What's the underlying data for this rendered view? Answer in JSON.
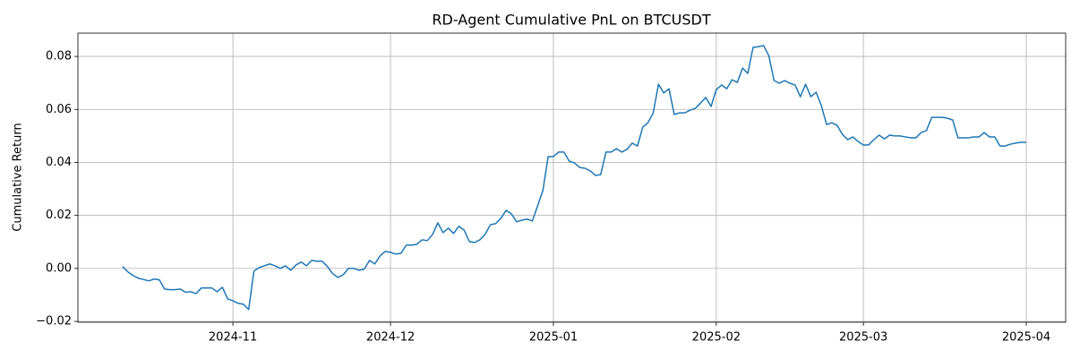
{
  "chart_data": {
    "type": "line",
    "title": "RD-Agent Cumulative PnL on BTCUSDT",
    "ylabel": "Cumulative Return",
    "color": "#1f77b4",
    "grid": true,
    "ylim": [
      -0.0203,
      0.0888
    ],
    "yticks": [
      {
        "value": -0.02,
        "label": "−0.02"
      },
      {
        "value": 0,
        "label": "0.00"
      },
      {
        "value": 0.02,
        "label": "0.02"
      },
      {
        "value": 0.04,
        "label": "0.04"
      },
      {
        "value": 0.06,
        "label": "0.06"
      },
      {
        "value": 0.08,
        "label": "0.08"
      }
    ],
    "xlim": [
      -8.5,
      179.5
    ],
    "xticks": [
      {
        "value": 21,
        "label": "2024-11"
      },
      {
        "value": 51,
        "label": "2024-12"
      },
      {
        "value": 82,
        "label": "2025-01"
      },
      {
        "value": 113,
        "label": "2025-02"
      },
      {
        "value": 141,
        "label": "2025-03"
      },
      {
        "value": 172,
        "label": "2025-04"
      }
    ],
    "values": [
      0.0007,
      -0.0013,
      -0.0027,
      -0.0037,
      -0.0042,
      -0.0047,
      -0.004,
      -0.0043,
      -0.0078,
      -0.008,
      -0.008,
      -0.0078,
      -0.009,
      -0.0088,
      -0.0095,
      -0.0074,
      -0.0074,
      -0.0074,
      -0.0088,
      -0.0071,
      -0.0115,
      -0.0122,
      -0.0132,
      -0.0135,
      -0.0155,
      -0.001,
      0.0003,
      0.001,
      0.0017,
      0.001,
      0,
      0.001,
      -0.0007,
      0.0013,
      0.0024,
      0.001,
      0.003,
      0.0027,
      0.0027,
      0.0007,
      -0.002,
      -0.0034,
      -0.0024,
      0,
      0,
      -0.0007,
      -0.0003,
      0.003,
      0.0017,
      0.0047,
      0.0064,
      0.0061,
      0.0054,
      0.0057,
      0.0088,
      0.0088,
      0.0091,
      0.0108,
      0.0105,
      0.0128,
      0.0172,
      0.0135,
      0.0152,
      0.0132,
      0.0159,
      0.0145,
      0.0101,
      0.0098,
      0.0108,
      0.0128,
      0.0165,
      0.0169,
      0.0189,
      0.0219,
      0.0206,
      0.0176,
      0.0182,
      0.0186,
      0.0179,
      0.0236,
      0.0294,
      0.0422,
      0.0422,
      0.0439,
      0.0439,
      0.0405,
      0.0398,
      0.0381,
      0.0378,
      0.0368,
      0.0351,
      0.0354,
      0.0439,
      0.0439,
      0.0452,
      0.0439,
      0.0449,
      0.0473,
      0.0462,
      0.0533,
      0.055,
      0.0587,
      0.0695,
      0.0662,
      0.0678,
      0.0581,
      0.0587,
      0.0587,
      0.0597,
      0.0604,
      0.0624,
      0.0645,
      0.0611,
      0.0675,
      0.0692,
      0.0678,
      0.0712,
      0.0702,
      0.0756,
      0.0736,
      0.0834,
      0.0837,
      0.0841,
      0.0803,
      0.0709,
      0.0699,
      0.0709,
      0.0699,
      0.0692,
      0.0648,
      0.0695,
      0.0648,
      0.0665,
      0.0614,
      0.0543,
      0.055,
      0.054,
      0.0506,
      0.0486,
      0.0496,
      0.0479,
      0.0466,
      0.0466,
      0.0486,
      0.0503,
      0.0489,
      0.0503,
      0.05,
      0.05,
      0.0496,
      0.0493,
      0.0493,
      0.0513,
      0.052,
      0.057,
      0.057,
      0.057,
      0.0567,
      0.056,
      0.0493,
      0.0493,
      0.0493,
      0.0496,
      0.0496,
      0.0513,
      0.0496,
      0.0496,
      0.0462,
      0.0462,
      0.0469,
      0.0473,
      0.0476,
      0.0476
    ]
  }
}
